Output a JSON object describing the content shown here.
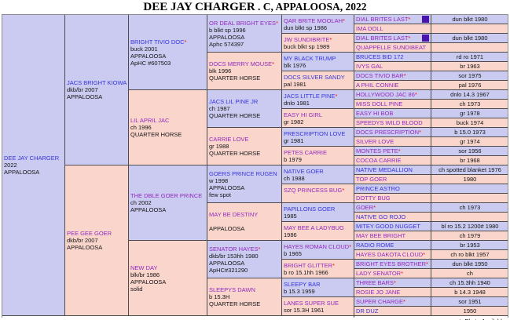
{
  "title": {
    "name": "DEE JAY CHARGER",
    "suffix": " . C, APPALOOSA, 2022"
  },
  "photo_star": "*",
  "footer": {
    "star_label": "*",
    "text": " - Photo Available"
  },
  "colors": {
    "sire_bg": "#cbcbf1",
    "dam_bg": "#fad5cc",
    "link_blue": "#3434dd",
    "link_purple": "#922abe",
    "star_red": "#ee1111",
    "photo_icon": "#4a13ad"
  },
  "pedigree": {
    "gen1": [
      {
        "name": "DEE JAY CHARGER",
        "color": "blue",
        "star": false,
        "lines": [
          "2022",
          "APPALOOSA"
        ]
      }
    ],
    "gen2": [
      {
        "name": "JACS BRIGHT KIOWA",
        "color": "blue",
        "star": false,
        "lines": [
          "dkb/br 2007",
          "APPALOOSA"
        ]
      },
      {
        "name": "PEE GEE GOER",
        "color": "purple",
        "star": false,
        "lines": [
          "dkb/br 2007",
          "APPALOOSA"
        ]
      }
    ],
    "gen3": [
      {
        "name": "BRIGHT TIVIO DOC",
        "color": "blue",
        "star": true,
        "lines": [
          "buck 2001",
          "APPALOOSA",
          "ApHC #607503"
        ]
      },
      {
        "name": "LIL APRIL JAC",
        "color": "purple",
        "star": false,
        "lines": [
          "ch 1996",
          "QUARTER HORSE"
        ]
      },
      {
        "name": "THE DBLE GOER PRINCE",
        "color": "purple",
        "star": false,
        "lines": [
          "ch 2002",
          "APPALOOSA"
        ]
      },
      {
        "name": "NEW DAY",
        "color": "purple",
        "star": false,
        "lines": [
          "blk/br 1986",
          "APPALOOSA",
          "solid"
        ]
      }
    ],
    "gen4": [
      {
        "name": "OR DEAL BRIGHT EYES",
        "color": "purple",
        "star": true,
        "lines": [
          "b blkt sp 1996",
          "APPALOOSA",
          "Aphc 574397"
        ]
      },
      {
        "name": "DOCS MERRY MOUSE",
        "color": "purple",
        "star": true,
        "lines": [
          "blk 1996",
          "QUARTER HORSE"
        ]
      },
      {
        "name": "JACS LIL PINE JR",
        "color": "blue",
        "star": false,
        "lines": [
          "ch 1987",
          "QUARTER HORSE"
        ]
      },
      {
        "name": "CARRIE LOVE",
        "color": "purple",
        "star": false,
        "lines": [
          "gr 1988",
          "QUARTER HORSE"
        ]
      },
      {
        "name": "GOERS PRINCE RUGEN",
        "color": "blue",
        "star": false,
        "lines": [
          "w 1998",
          "APPALOOSA",
          "few spot"
        ]
      },
      {
        "name": "MAY BE DESTINY",
        "color": "purple",
        "star": false,
        "lines": [
          "",
          "APPALOOSA"
        ]
      },
      {
        "name": "SENATOR HAYES",
        "color": "purple",
        "star": true,
        "lines": [
          "dkb/br 153hh 1980",
          "APPALOOSA",
          "ApHC#321290"
        ]
      },
      {
        "name": "SLEEPYS DAWN",
        "color": "purple",
        "star": false,
        "lines": [
          "b 15.3H",
          "QUARTER HORSE"
        ]
      }
    ],
    "gen5": [
      {
        "name": "QAR BRITE MOOLAH",
        "color": "purple",
        "star": true,
        "detail": "dun blkt sp 1986"
      },
      {
        "name": "JW SUNDIBRITE",
        "color": "purple",
        "star": true,
        "detail": "buck blkt sp 1989"
      },
      {
        "name": "MY BLACK TRUMP",
        "color": "blue",
        "star": false,
        "detail": "blk 1976"
      },
      {
        "name": "DOCS SILVER SANDY",
        "color": "blue",
        "star": false,
        "detail": "pal 1981"
      },
      {
        "name": "JACS LITTLE PINE",
        "color": "blue",
        "star": true,
        "detail": "dnlo 1981"
      },
      {
        "name": "EASY HI GIRL",
        "color": "purple",
        "star": false,
        "detail": "gr 1982"
      },
      {
        "name": "PRESCRIPTION LOVE",
        "color": "blue",
        "star": false,
        "detail": "gr 1981"
      },
      {
        "name": "PETES CARRIE",
        "color": "purple",
        "star": false,
        "detail": "b 1979"
      },
      {
        "name": "NATIVE GOER",
        "color": "blue",
        "star": false,
        "detail": "ch 1988"
      },
      {
        "name": "SZQ PRINCESS BUG",
        "color": "purple",
        "star": true,
        "detail": ""
      },
      {
        "name": "PAPILLONS GOER",
        "color": "blue",
        "star": false,
        "detail": "1985"
      },
      {
        "name": "MAY BEE A LADYBUG",
        "color": "purple",
        "star": false,
        "detail": "1986"
      },
      {
        "name": "HAYES ROMAN CLOUD",
        "color": "purple",
        "star": true,
        "detail": "b 1965"
      },
      {
        "name": "BRIGHT GLITTER",
        "color": "purple",
        "star": true,
        "detail": "b ro 15.1hh 1966"
      },
      {
        "name": "SLEEPY BAR",
        "color": "blue",
        "star": false,
        "detail": "b 15.3 1959"
      },
      {
        "name": "LANES SUPER SUE",
        "color": "purple",
        "star": false,
        "detail": "sor 15.3H 1961"
      }
    ],
    "gen6": [
      {
        "name": "DIAL BRITES LAST",
        "color": "purple",
        "star": true,
        "icon": true,
        "detail": "dun blkt 1980"
      },
      {
        "name": "IMA DOLL",
        "color": "purple",
        "star": false,
        "icon": false,
        "detail": ""
      },
      {
        "name": "DIAL BRITES LAST",
        "color": "purple",
        "star": true,
        "icon": true,
        "detail": "dun blkt 1980"
      },
      {
        "name": "QUAPPELLE SUNDIBEAT",
        "color": "purple",
        "star": false,
        "icon": false,
        "detail": ""
      },
      {
        "name": "BRUCES BID 172",
        "color": "blue",
        "star": false,
        "icon": false,
        "detail": "rd ro 1971"
      },
      {
        "name": "IVYS GAL",
        "color": "purple",
        "star": false,
        "icon": false,
        "detail": "br 1963"
      },
      {
        "name": "DOCS TIVIO BAR",
        "color": "purple",
        "star": true,
        "icon": false,
        "detail": "sor 1975"
      },
      {
        "name": "A PHIL CONNIE",
        "color": "purple",
        "star": false,
        "icon": false,
        "detail": "pal 1976"
      },
      {
        "name": "HOLLYWOOD JAC 86",
        "color": "purple",
        "star": true,
        "icon": false,
        "detail": "dnlo 14.3 1967"
      },
      {
        "name": "MISS DOLL PINE",
        "color": "purple",
        "star": false,
        "icon": false,
        "detail": "ch 1973"
      },
      {
        "name": "EASY HI BOB",
        "color": "purple",
        "star": false,
        "icon": false,
        "detail": "gr 1978"
      },
      {
        "name": "SPEEDYS WILD BLOOD",
        "color": "purple",
        "star": false,
        "icon": false,
        "detail": "buck 1974"
      },
      {
        "name": "DOCS PRESCRIPTION",
        "color": "purple",
        "star": true,
        "icon": false,
        "detail": "b 15.0 1973"
      },
      {
        "name": "SILVER LOVE",
        "color": "purple",
        "star": false,
        "icon": false,
        "detail": "gr 1974"
      },
      {
        "name": "MONTES PETE",
        "color": "purple",
        "star": true,
        "icon": false,
        "detail": "sor 1956"
      },
      {
        "name": "COCOA CARRIE",
        "color": "purple",
        "star": false,
        "icon": false,
        "detail": "br 1968"
      },
      {
        "name": "NATIVE MEDALLION",
        "color": "blue",
        "star": false,
        "icon": false,
        "detail": "ch spotted blanket 1976"
      },
      {
        "name": "TOP GOER",
        "color": "purple",
        "star": false,
        "icon": false,
        "detail": "1980"
      },
      {
        "name": "PRINCE ASTRO",
        "color": "blue",
        "star": false,
        "icon": false,
        "detail": ""
      },
      {
        "name": "DOTTY BUG",
        "color": "purple",
        "star": false,
        "icon": false,
        "detail": ""
      },
      {
        "name": "GOER",
        "color": "purple",
        "star": true,
        "icon": false,
        "detail": "ch 1973"
      },
      {
        "name": "NATIVE GO ROJO",
        "color": "blue",
        "star": false,
        "icon": false,
        "detail": ""
      },
      {
        "name": "MITEY GOOD NUGGET",
        "color": "blue",
        "star": false,
        "icon": false,
        "detail": "bl ro 15.2 1200# 1980"
      },
      {
        "name": "MAY BEE BRIGHT",
        "color": "purple",
        "star": false,
        "icon": false,
        "detail": "ch 1979"
      },
      {
        "name": "RADIO ROME",
        "color": "blue",
        "star": false,
        "icon": false,
        "detail": "br 1953"
      },
      {
        "name": "HAYES DAKOTA CLOUD",
        "color": "purple",
        "star": true,
        "icon": false,
        "detail": "ch ro blkt 1957"
      },
      {
        "name": "BRIGHT EYES BROTHER",
        "color": "purple",
        "star": true,
        "icon": false,
        "detail": "dun blkt 1950"
      },
      {
        "name": "LADY SENATOR",
        "color": "purple",
        "star": true,
        "icon": false,
        "detail": "ch"
      },
      {
        "name": "THREE BARS",
        "color": "purple",
        "star": true,
        "icon": false,
        "detail": "ch 15.3hh 1940"
      },
      {
        "name": "ROSIE JO JANE",
        "color": "purple",
        "star": false,
        "icon": false,
        "detail": "b 14.3 1948"
      },
      {
        "name": "SUPER CHARGE",
        "color": "purple",
        "star": true,
        "icon": false,
        "detail": "sor 1951"
      },
      {
        "name": "DR DUZ",
        "color": "blue",
        "star": false,
        "icon": false,
        "detail": "1950"
      }
    ]
  }
}
